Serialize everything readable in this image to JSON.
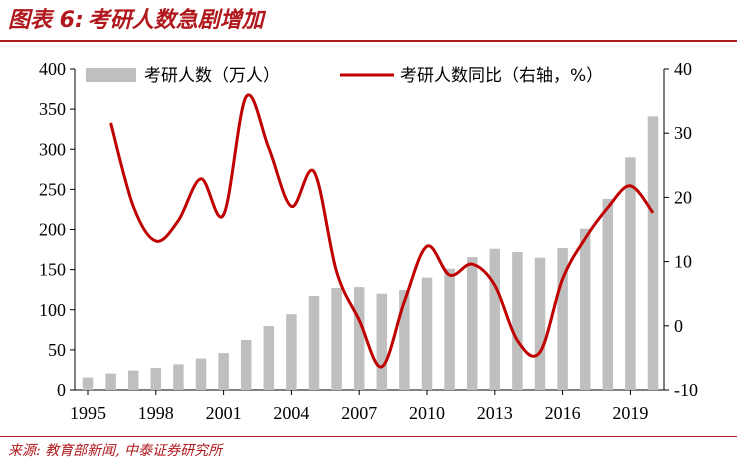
{
  "header": {
    "fig_label": "图表 6:",
    "title": "考研人数急剧增加"
  },
  "source": "来源: 教育部新闻, 中泰证券研究所",
  "colors": {
    "accent": "#b0181d",
    "bar": "#bfbfbf",
    "line": "#c00000"
  },
  "chart_data": {
    "type": "bar",
    "x": [
      1995,
      1996,
      1997,
      1998,
      1999,
      2000,
      2001,
      2002,
      2003,
      2004,
      2005,
      2006,
      2007,
      2008,
      2009,
      2010,
      2011,
      2012,
      2013,
      2014,
      2015,
      2016,
      2017,
      2018,
      2019,
      2020
    ],
    "x_tick_labels": [
      "1995",
      "1998",
      "2001",
      "2004",
      "2007",
      "2010",
      "2013",
      "2016",
      "2019"
    ],
    "ylim": [
      0,
      400
    ],
    "y_ticks": [
      "0",
      "50",
      "100",
      "150",
      "200",
      "250",
      "300",
      "350",
      "400"
    ],
    "y2lim": [
      -10,
      40
    ],
    "y2_ticks": [
      "-10",
      "0",
      "10",
      "20",
      "30",
      "40"
    ],
    "legend_position": "top",
    "grid": false,
    "series": [
      {
        "name": "考研人数（万人）",
        "type": "bar",
        "axis": "left",
        "values": [
          15.5,
          20.4,
          24.2,
          27.4,
          31.9,
          39.2,
          46.0,
          62.4,
          79.7,
          94.5,
          117.2,
          127.1,
          128.2,
          120.0,
          124.6,
          140.0,
          151.1,
          165.6,
          176.0,
          172.0,
          164.9,
          177.0,
          201.0,
          238.0,
          290.0,
          341.0
        ]
      },
      {
        "name": "考研人数同比（右轴，%）",
        "type": "line",
        "smooth": true,
        "axis": "right",
        "x": [
          1996,
          1997,
          1998,
          1999,
          2000,
          2001,
          2002,
          2003,
          2004,
          2005,
          2006,
          2007,
          2008,
          2009,
          2010,
          2011,
          2012,
          2013,
          2014,
          2015,
          2016,
          2017,
          2018,
          2019,
          2020
        ],
        "values": [
          31.6,
          18.6,
          13.2,
          16.4,
          22.9,
          17.3,
          35.7,
          27.7,
          18.6,
          24.0,
          8.4,
          0.9,
          -6.4,
          3.8,
          12.4,
          7.9,
          9.6,
          6.3,
          -2.3,
          -4.1,
          7.3,
          13.6,
          18.4,
          21.8,
          17.6
        ]
      }
    ]
  }
}
